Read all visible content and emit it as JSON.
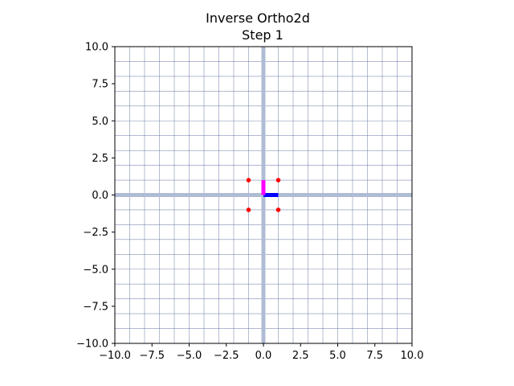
{
  "chart_data": {
    "type": "scatter",
    "title": "Inverse Ortho2d",
    "subtitle": "Step 1",
    "xlabel": "",
    "ylabel": "",
    "xlim": [
      -10,
      10
    ],
    "ylim": [
      -10,
      10
    ],
    "xticks": [
      -10,
      -7.5,
      -5,
      -2.5,
      0,
      2.5,
      5,
      7.5,
      10
    ],
    "yticks": [
      -10,
      -7.5,
      -5,
      -2.5,
      0,
      2.5,
      5,
      7.5,
      10
    ],
    "xtick_labels": [
      "−10.0",
      "−7.5",
      "−5.0",
      "−2.5",
      "0.0",
      "2.5",
      "5.0",
      "7.5",
      "10.0"
    ],
    "ytick_labels": [
      "−10.0",
      "−7.5",
      "−5.0",
      "−2.5",
      "0.0",
      "2.5",
      "5.0",
      "7.5",
      "10.0"
    ],
    "grid": true,
    "grid_step": 1,
    "axes_lines": [
      {
        "orientation": "horizontal",
        "at": 0,
        "color": "#b0bcd4"
      },
      {
        "orientation": "vertical",
        "at": 0,
        "color": "#b0bcd4"
      }
    ],
    "basis_vectors": [
      {
        "x0": 0,
        "y0": 0,
        "x1": 1,
        "y1": 0,
        "color": "#0000ff"
      },
      {
        "x0": 0,
        "y0": 0,
        "x1": 0,
        "y1": 1,
        "color": "#ff00ff"
      }
    ],
    "points": [
      {
        "x": -1,
        "y": 1
      },
      {
        "x": 1,
        "y": 1
      },
      {
        "x": -1,
        "y": -1
      },
      {
        "x": 1,
        "y": -1
      }
    ],
    "point_color": "#ff0000",
    "grid_color": "#5a6a9e"
  }
}
